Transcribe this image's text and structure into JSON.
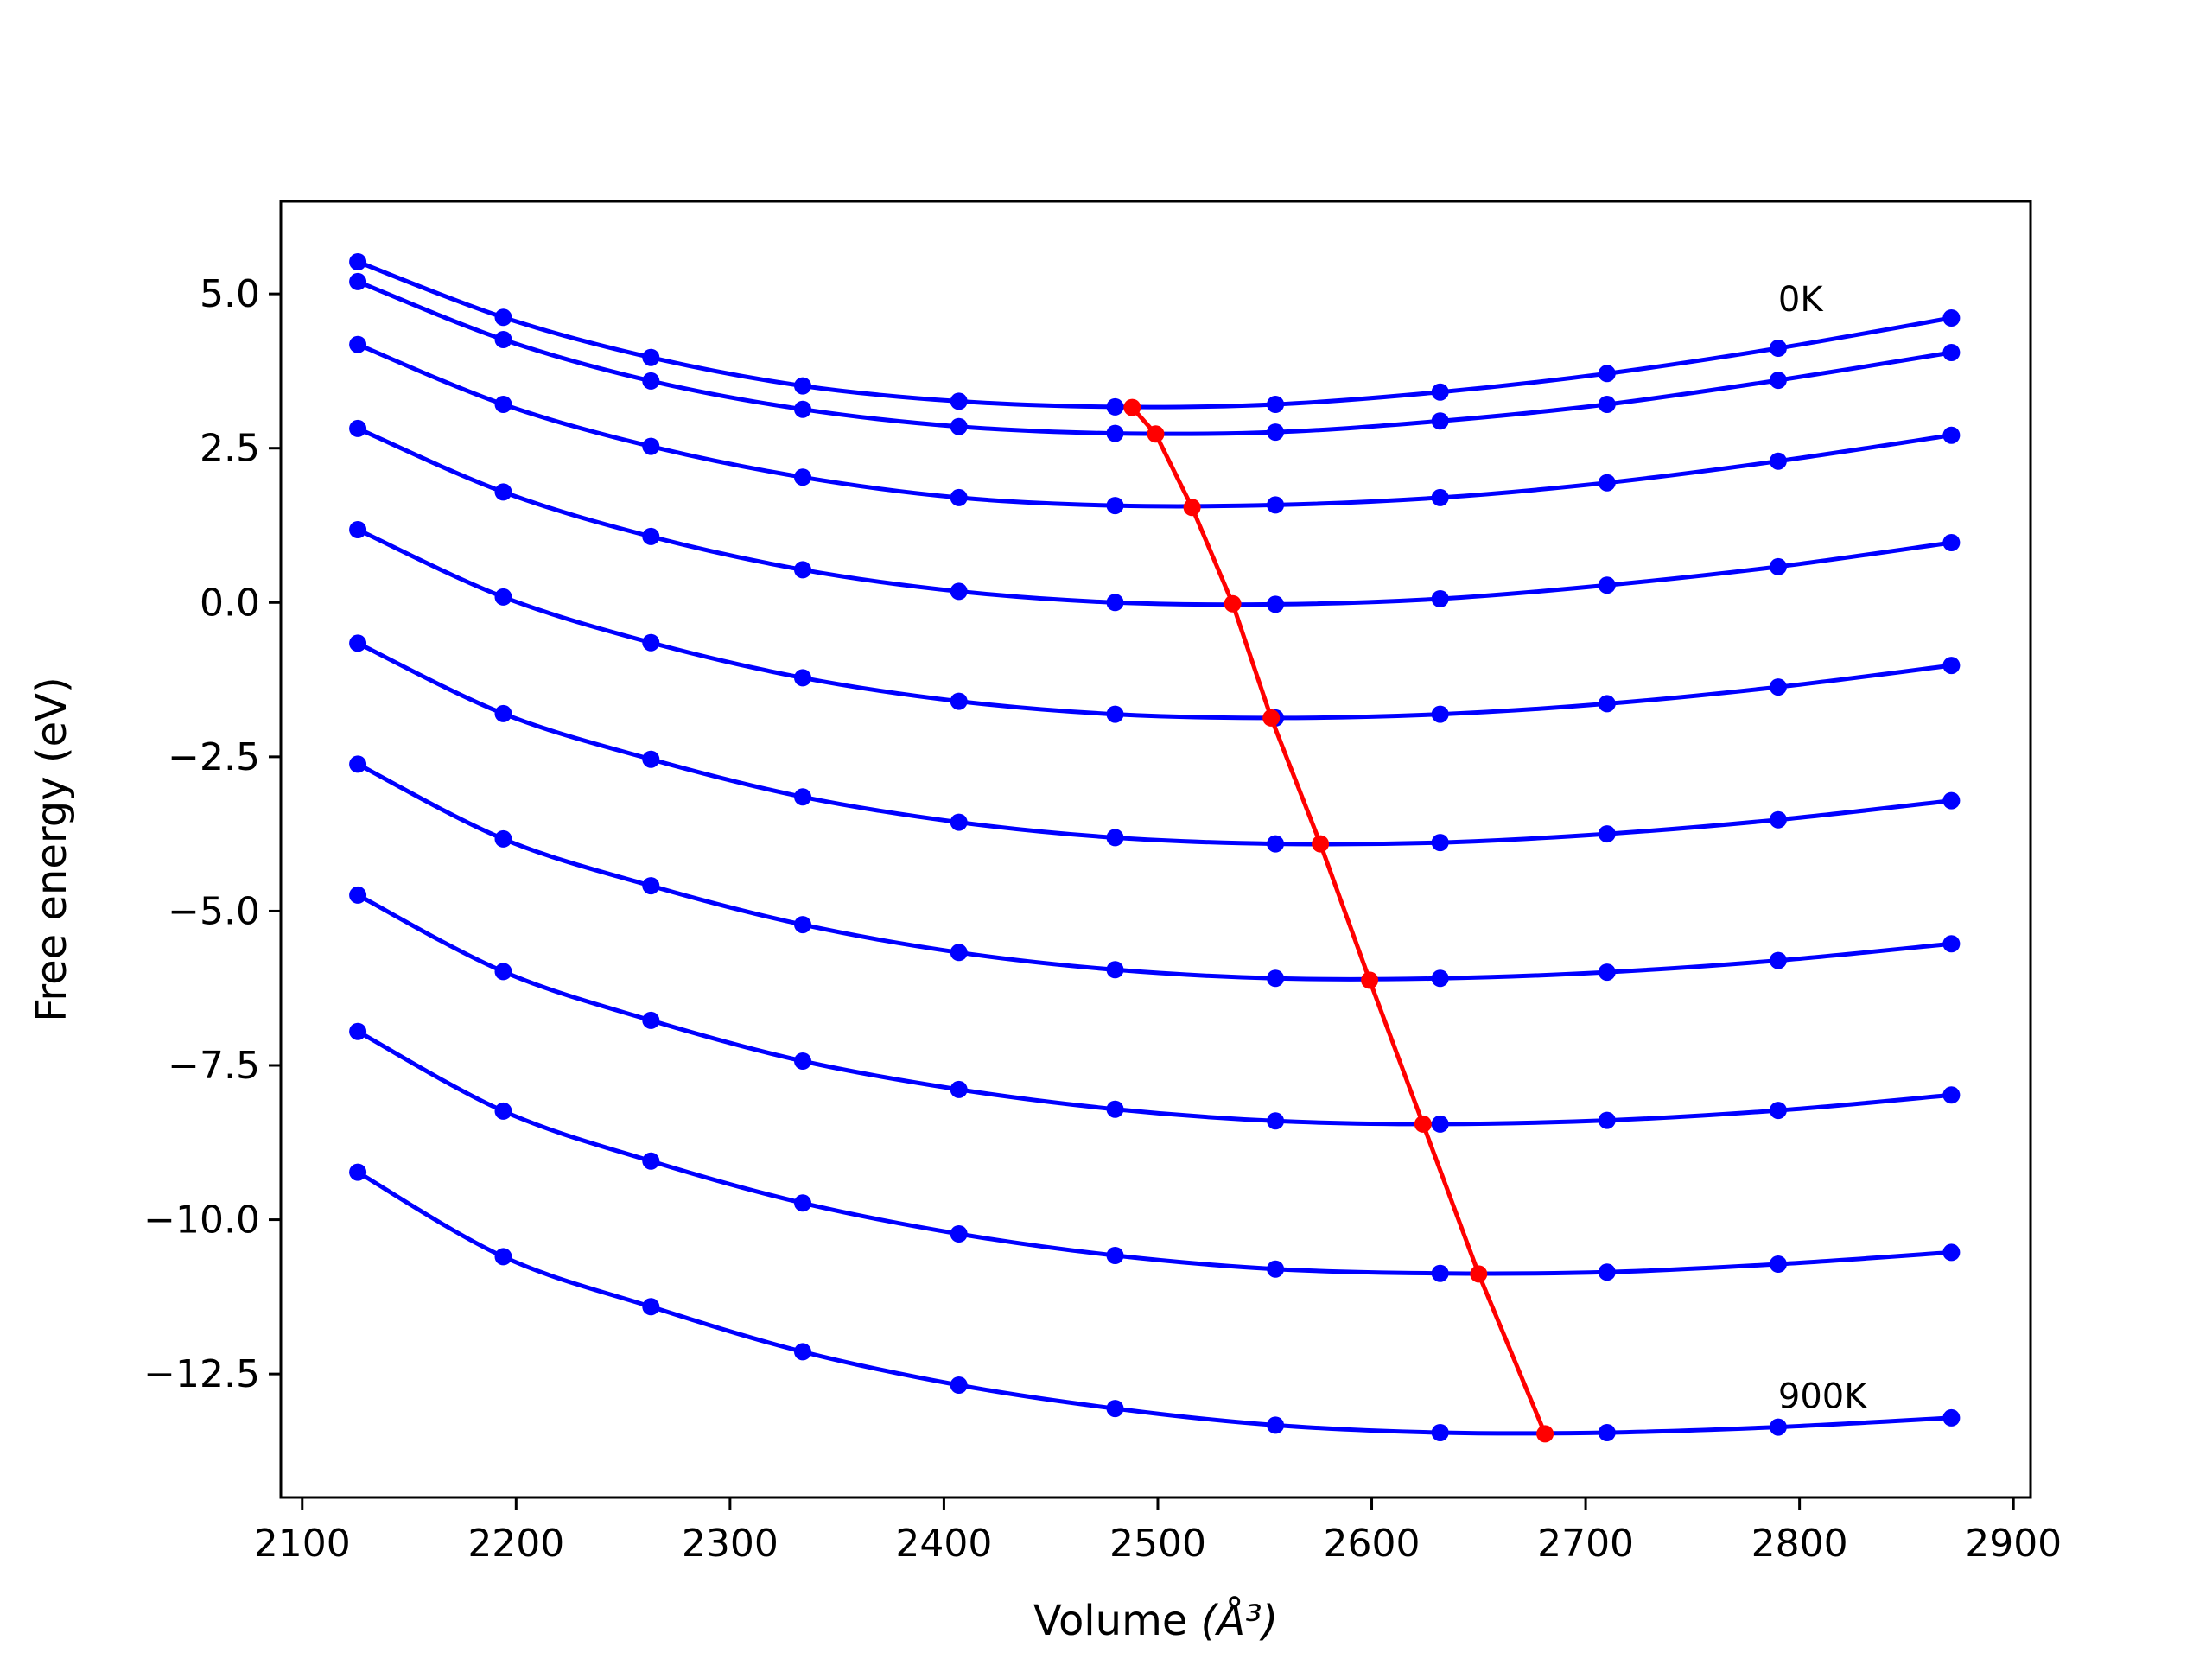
{
  "chart_data": {
    "type": "line",
    "title": "",
    "xlabel": "Volume",
    "xlabel_unit": "(Å³)",
    "ylabel": "Free energy (eV)",
    "xlim": [
      2090,
      2908
    ],
    "ylim": [
      -14.5,
      6.5
    ],
    "xticks": [
      2100,
      2200,
      2300,
      2400,
      2500,
      2600,
      2700,
      2800,
      2900
    ],
    "yticks": [
      5.0,
      2.5,
      0.0,
      -2.5,
      -5.0,
      -7.5,
      -10.0,
      -12.5
    ],
    "ytick_labels": [
      "5.0",
      "2.5",
      "0.0",
      "−2.5",
      "−5.0",
      "−7.5",
      "−10.0",
      "−12.5"
    ],
    "grid": false,
    "legend": "none",
    "colors": {
      "curves": "#0000ff",
      "minimum_line": "#ff0000"
    },
    "x": [
      2126,
      2194,
      2263,
      2334,
      2407,
      2480,
      2555,
      2632,
      2710,
      2790,
      2871
    ],
    "series": [
      {
        "values": [
          5.52,
          4.62,
          3.97,
          3.51,
          3.26,
          3.17,
          3.21,
          3.41,
          3.71,
          4.12,
          4.61
        ]
      },
      {
        "values": [
          5.2,
          4.26,
          3.59,
          3.13,
          2.85,
          2.74,
          2.76,
          2.94,
          3.21,
          3.6,
          4.05
        ]
      },
      {
        "values": [
          4.18,
          3.21,
          2.53,
          2.03,
          1.7,
          1.57,
          1.58,
          1.7,
          1.94,
          2.29,
          2.71
        ]
      },
      {
        "values": [
          2.82,
          1.79,
          1.07,
          0.53,
          0.18,
          0.0,
          -0.03,
          0.06,
          0.28,
          0.58,
          0.97
        ]
      },
      {
        "values": [
          1.18,
          0.09,
          -0.65,
          -1.22,
          -1.6,
          -1.81,
          -1.87,
          -1.81,
          -1.64,
          -1.37,
          -1.02
        ]
      },
      {
        "values": [
          -0.66,
          -1.8,
          -2.54,
          -3.15,
          -3.56,
          -3.81,
          -3.91,
          -3.89,
          -3.75,
          -3.52,
          -3.21
        ]
      },
      {
        "values": [
          -2.62,
          -3.83,
          -4.59,
          -5.22,
          -5.67,
          -5.95,
          -6.09,
          -6.09,
          -5.99,
          -5.8,
          -5.53
        ]
      },
      {
        "values": [
          -4.74,
          -5.98,
          -6.77,
          -7.43,
          -7.89,
          -8.21,
          -8.4,
          -8.45,
          -8.39,
          -8.23,
          -7.98
        ]
      },
      {
        "values": [
          -6.95,
          -8.24,
          -9.05,
          -9.73,
          -10.23,
          -10.58,
          -10.8,
          -10.87,
          -10.85,
          -10.72,
          -10.53
        ]
      },
      {
        "values": [
          -9.23,
          -10.6,
          -11.41,
          -12.14,
          -12.68,
          -13.06,
          -13.33,
          -13.45,
          -13.45,
          -13.36,
          -13.21
        ]
      }
    ],
    "minimum_line": {
      "x": [
        2488,
        2499,
        2516,
        2535,
        2553,
        2576,
        2599,
        2624,
        2650,
        2681
      ],
      "y": [
        3.16,
        2.73,
        1.54,
        -0.02,
        -1.87,
        -3.91,
        -6.12,
        -8.45,
        -10.88,
        -13.47
      ]
    },
    "annotations": [
      {
        "text": "0K",
        "x": 2790,
        "y": 4.72
      },
      {
        "text": "900K",
        "x": 2790,
        "y": -13.05
      }
    ]
  }
}
